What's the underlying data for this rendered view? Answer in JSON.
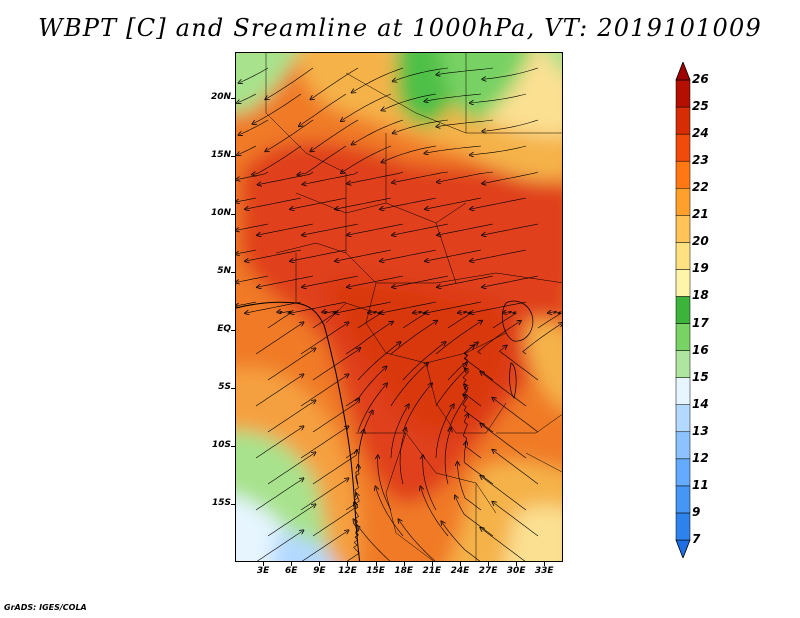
{
  "title": "WBPT [C] and Sreamline at 1000hPa, VT: 2019101009",
  "footer": "GrADS: IGES/COLA",
  "map": {
    "lat_range": [
      -20,
      24
    ],
    "lon_range": [
      0,
      35
    ],
    "lat_ticks": [
      {
        "value": 20,
        "label": "20N"
      },
      {
        "value": 15,
        "label": "15N"
      },
      {
        "value": 10,
        "label": "10N"
      },
      {
        "value": 5,
        "label": "5N"
      },
      {
        "value": 0,
        "label": "EQ"
      },
      {
        "value": -5,
        "label": "5S"
      },
      {
        "value": -10,
        "label": "10S"
      },
      {
        "value": -15,
        "label": "15S"
      }
    ],
    "lon_ticks": [
      {
        "value": 3,
        "label": "3E"
      },
      {
        "value": 6,
        "label": "6E"
      },
      {
        "value": 9,
        "label": "9E"
      },
      {
        "value": 12,
        "label": "12E"
      },
      {
        "value": 15,
        "label": "15E"
      },
      {
        "value": 18,
        "label": "18E"
      },
      {
        "value": 21,
        "label": "21E"
      },
      {
        "value": 24,
        "label": "24E"
      },
      {
        "value": 27,
        "label": "27E"
      },
      {
        "value": 30,
        "label": "30E"
      },
      {
        "value": 33,
        "label": "33E"
      }
    ]
  },
  "colorbar": {
    "levels": [
      "7",
      "9",
      "11",
      "12",
      "13",
      "14",
      "15",
      "16",
      "17",
      "18",
      "19",
      "20",
      "21",
      "22",
      "23",
      "24",
      "25",
      "26"
    ],
    "colors": [
      "#1e6ee6",
      "#2d82eb",
      "#4696f5",
      "#64aaff",
      "#8cc3ff",
      "#b4d9ff",
      "#e6f5ff",
      "#aee69f",
      "#78d264",
      "#3cb43c",
      "#fff5aa",
      "#ffe182",
      "#ffc35a",
      "#ffa02d",
      "#ff7814",
      "#f04b0a",
      "#d72d05",
      "#b40f00",
      "#a00000"
    ]
  },
  "colors": {
    "hot": "#e0401a",
    "warm": "#f07a28",
    "mild": "#f5b24a",
    "yellow": "#fbe092",
    "green_light": "#a8e28c",
    "green": "#4fc046",
    "pale": "#e6f5ff",
    "blue": "#8cc3ff"
  }
}
